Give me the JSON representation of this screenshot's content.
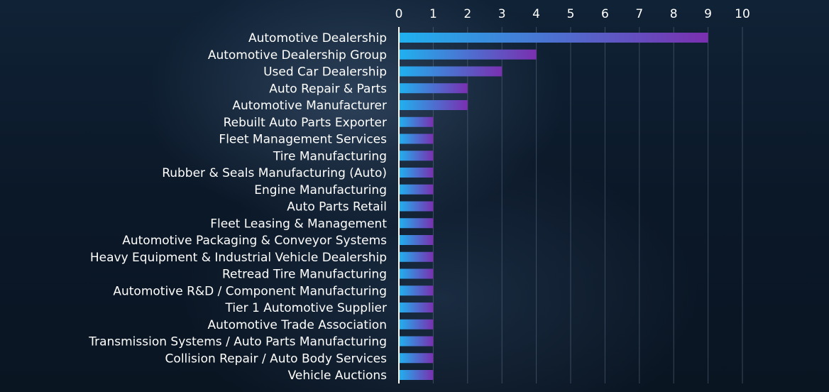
{
  "chart_data": {
    "type": "bar",
    "orientation": "horizontal",
    "title": "",
    "xlabel": "",
    "ylabel": "",
    "xlim": [
      0,
      10
    ],
    "x_ticks": [
      0,
      1,
      2,
      3,
      4,
      5,
      6,
      7,
      8,
      9,
      10
    ],
    "x_tick_labels": [
      "0",
      "1",
      "2",
      "3",
      "4",
      "5",
      "6",
      "7",
      "8",
      "9",
      "10"
    ],
    "x_axis_position": "top",
    "grid": true,
    "legend": "none",
    "bar_gradient": [
      "#1fb2f0",
      "#7a2fb0"
    ],
    "categories": [
      "Automotive Dealership",
      "Automotive Dealership Group",
      "Used Car Dealership",
      "Auto Repair & Parts",
      "Automotive Manufacturer",
      "Rebuilt Auto Parts Exporter",
      "Fleet Management Services",
      "Tire Manufacturing",
      "Rubber & Seals Manufacturing (Auto)",
      "Engine Manufacturing",
      "Auto Parts Retail",
      "Fleet Leasing & Management",
      "Automotive Packaging & Conveyor Systems",
      "Heavy Equipment & Industrial Vehicle Dealership",
      "Retread Tire Manufacturing",
      "Automotive R&D / Component Manufacturing",
      "Tier 1 Automotive Supplier",
      "Automotive Trade Association",
      "Transmission Systems / Auto Parts Manufacturing",
      "Collision Repair / Auto Body Services",
      "Vehicle Auctions"
    ],
    "values": [
      9,
      4,
      3,
      2,
      2,
      1,
      1,
      1,
      1,
      1,
      1,
      1,
      1,
      1,
      1,
      1,
      1,
      1,
      1,
      1,
      1
    ]
  }
}
